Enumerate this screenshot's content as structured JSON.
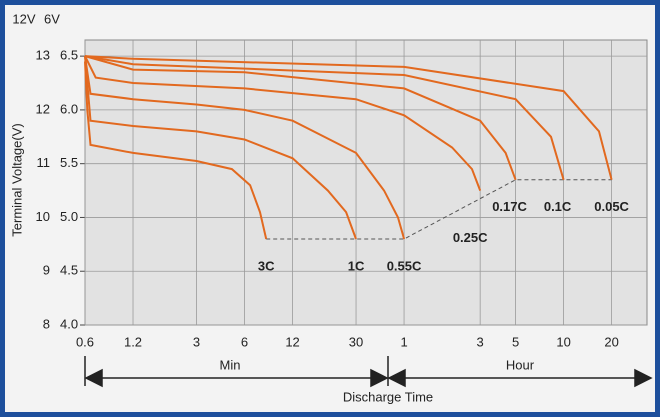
{
  "chart_data": {
    "type": "line",
    "y_axis_label": "Terminal Voltage(V)",
    "y_axis_title": "12V",
    "y2_axis_title": "6V",
    "x_axis_label": "Discharge Time",
    "x_group_labels": [
      "Min",
      "Hour"
    ],
    "log_x": true,
    "grid": true,
    "xlim": [
      0.6,
      2000
    ],
    "xticks": [
      0.6,
      1.2,
      3,
      6,
      12,
      30,
      {
        "value": 60,
        "label": "1"
      },
      {
        "value": 180,
        "label": "3"
      },
      {
        "value": 300,
        "label": "5"
      },
      {
        "value": 600,
        "label": "10"
      },
      {
        "value": 1200,
        "label": "20"
      }
    ],
    "ylim": [
      8,
      13.3
    ],
    "yticks": [
      8,
      9,
      10,
      11,
      12,
      13
    ],
    "y2lim": [
      4,
      6.65
    ],
    "y2ticks": [
      {
        "value": 4,
        "label": "4.0"
      },
      4.5,
      {
        "value": 5,
        "label": "5.0"
      },
      5.5,
      {
        "value": 6,
        "label": "6.0"
      },
      6.5
    ],
    "color": "#e2691f",
    "series": [
      {
        "name": "3C",
        "x": [
          0.6,
          0.62,
          0.65,
          1.2,
          3,
          5,
          6.5,
          7.5,
          8.2
        ],
        "values": [
          12.9,
          12.0,
          11.35,
          11.2,
          11.05,
          10.9,
          10.6,
          10.1,
          9.6
        ]
      },
      {
        "name": "1C",
        "x": [
          0.6,
          0.65,
          1.2,
          3,
          6,
          12,
          20,
          26,
          30
        ],
        "values": [
          13.0,
          11.8,
          11.7,
          11.6,
          11.45,
          11.1,
          10.5,
          10.1,
          9.6
        ]
      },
      {
        "name": "0.55C",
        "x": [
          0.6,
          0.65,
          1.2,
          3,
          6,
          12,
          30,
          45,
          55,
          60
        ],
        "values": [
          13.0,
          12.3,
          12.2,
          12.1,
          12.0,
          11.8,
          11.2,
          10.5,
          10.0,
          9.6
        ]
      },
      {
        "name": "0.25C",
        "x": [
          0.6,
          0.7,
          1.2,
          6,
          30,
          60,
          120,
          160,
          180
        ],
        "values": [
          13.0,
          12.6,
          12.5,
          12.4,
          12.2,
          11.9,
          11.3,
          10.9,
          10.5
        ]
      },
      {
        "name": "0.17C",
        "x": [
          0.6,
          1.2,
          6,
          60,
          180,
          260,
          300
        ],
        "values": [
          13.0,
          12.75,
          12.7,
          12.4,
          11.8,
          11.2,
          10.7
        ]
      },
      {
        "name": "0.1C",
        "x": [
          0.6,
          1.2,
          60,
          300,
          500,
          600
        ],
        "values": [
          13.0,
          12.85,
          12.65,
          12.2,
          11.5,
          10.7
        ]
      },
      {
        "name": "0.05C",
        "x": [
          0.6,
          1.2,
          60,
          600,
          1000,
          1200
        ],
        "values": [
          13.0,
          12.95,
          12.8,
          12.35,
          11.6,
          10.7
        ]
      }
    ],
    "end_voltage_line": {
      "x": [
        8.2,
        60,
        300,
        1200
      ],
      "values": [
        9.6,
        9.6,
        10.7,
        10.7
      ]
    }
  }
}
